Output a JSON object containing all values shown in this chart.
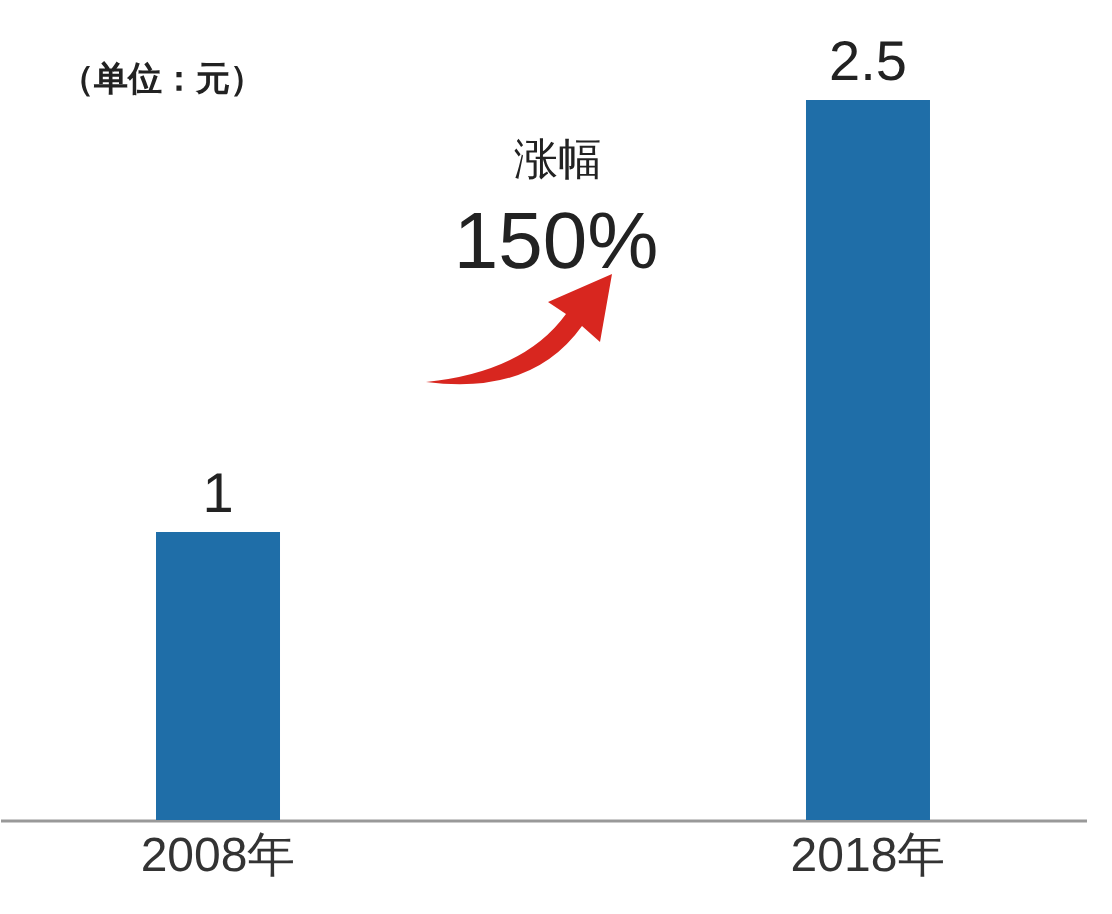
{
  "chart_data": {
    "type": "bar",
    "categories": [
      "2008年",
      "2018年"
    ],
    "values": [
      1,
      2.5
    ],
    "color": "#1f6ea8",
    "data_labels": true,
    "annotations": [
      "（单位：元）",
      "涨幅",
      "150%"
    ]
  }
}
